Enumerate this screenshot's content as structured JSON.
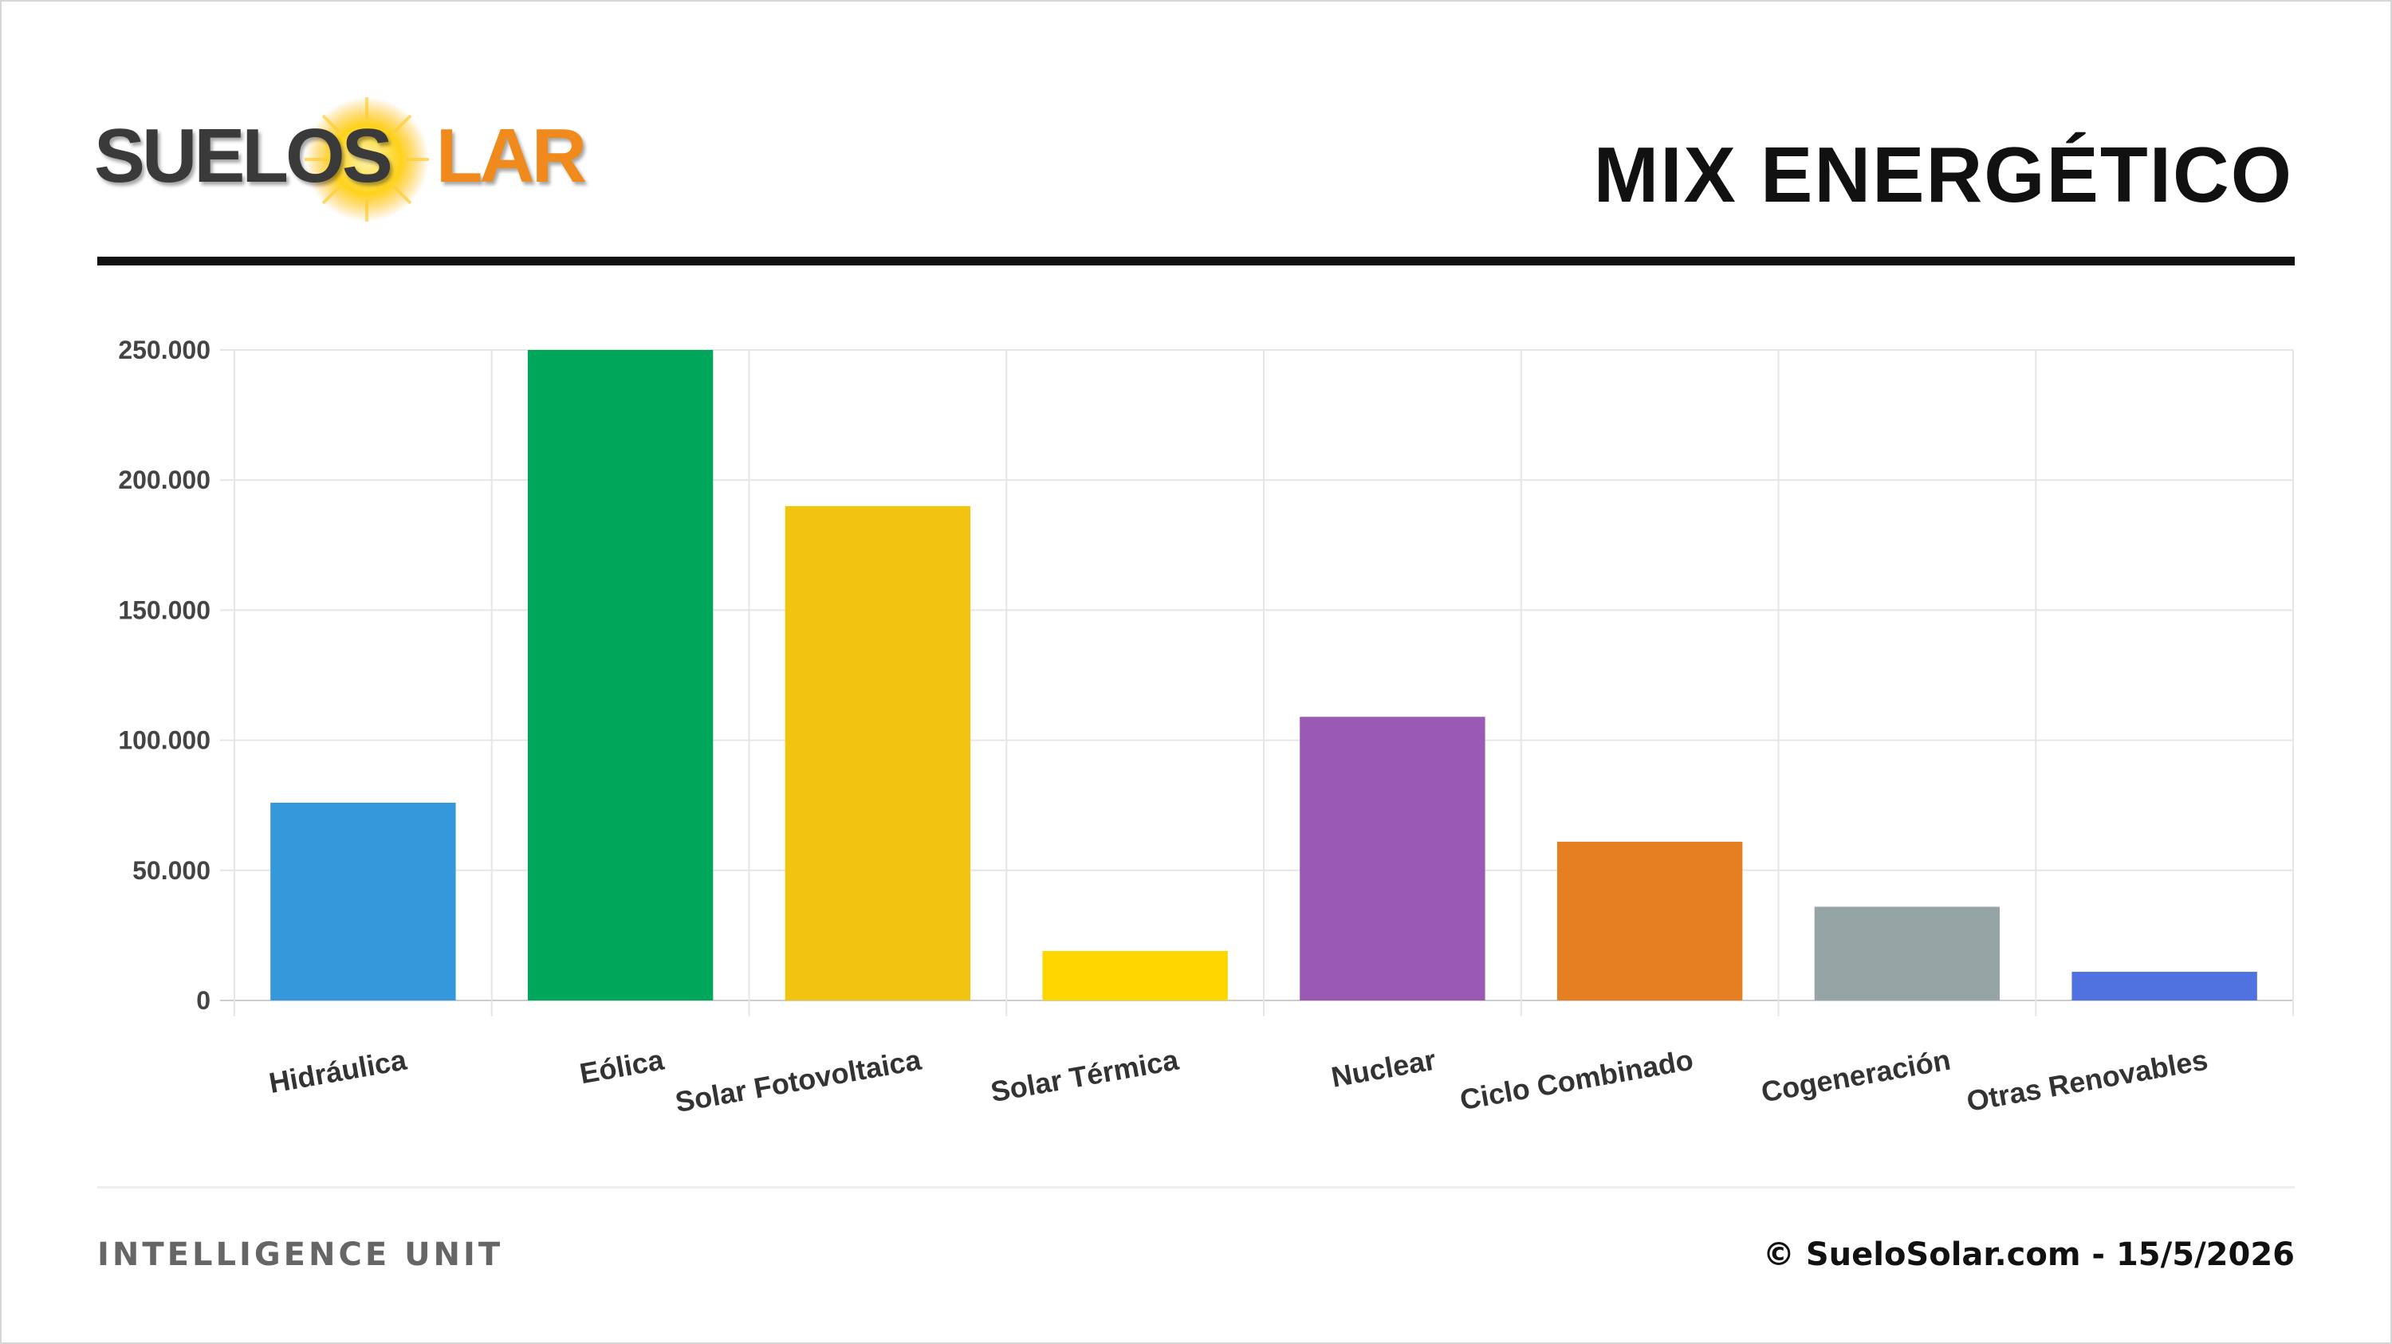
{
  "header": {
    "logo_text_part1": "SUELOS",
    "logo_text_part2": "LAR",
    "logo_alt": "SUELOSOLAR",
    "title": "MIX ENERGÉTICO"
  },
  "footer": {
    "left_text": "INTELLIGENCE UNIT",
    "right_text": "© SueloSolar.com - 15/5/2026"
  },
  "colors": {
    "rule": "#111111",
    "logo_dark": "#3a3a3a",
    "logo_orange": "#f08a1c"
  },
  "chart_data": {
    "type": "bar",
    "title": "MIX ENERGÉTICO",
    "xlabel": "",
    "ylabel": "",
    "ylim": [
      0,
      250000
    ],
    "y_ticks": [
      0,
      50000,
      100000,
      150000,
      200000,
      250000
    ],
    "y_tick_labels": [
      "0",
      "50.000",
      "100.000",
      "150.000",
      "200.000",
      "250.000"
    ],
    "grid": true,
    "legend": "none",
    "categories": [
      "Hidráulica",
      "Eólica",
      "Solar Fotovoltaica",
      "Solar Térmica",
      "Nuclear",
      "Ciclo Combinado",
      "Cogeneración",
      "Otras Renovables"
    ],
    "values": [
      76000,
      250000,
      190000,
      19000,
      109000,
      61000,
      36000,
      11000
    ],
    "colors": [
      "#3498db",
      "#00a65a",
      "#f1c40f",
      "#ffd700",
      "#9b59b6",
      "#e67e22",
      "#95a5a6",
      "#4f72e0"
    ]
  }
}
